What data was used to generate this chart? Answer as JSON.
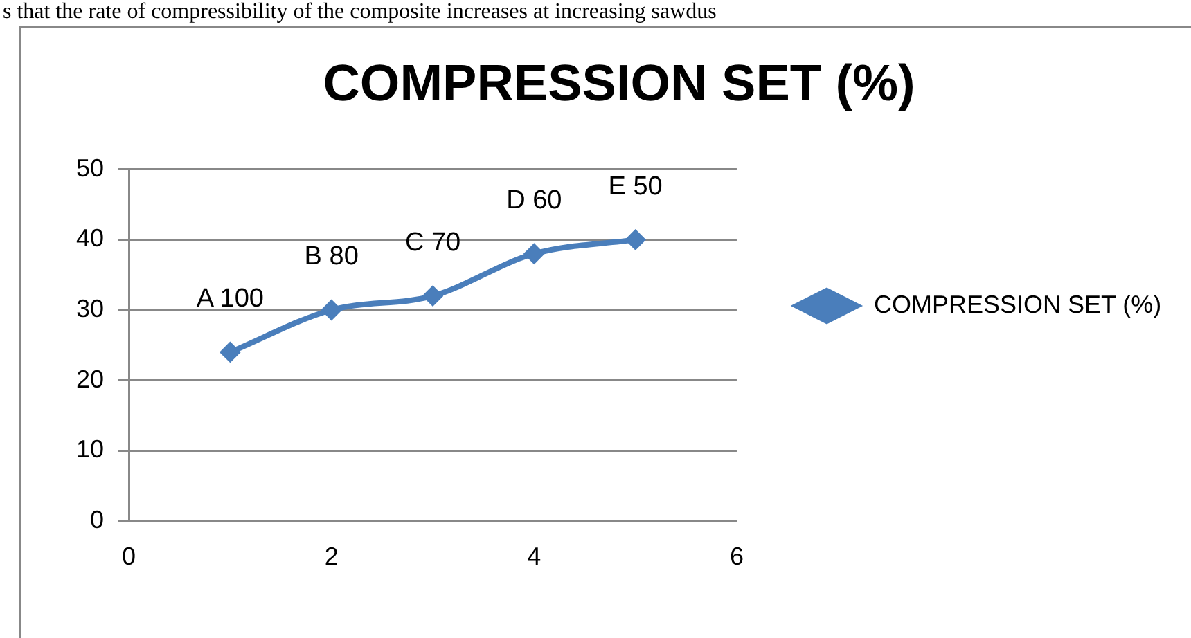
{
  "chart_data": {
    "type": "line",
    "title": "COMPRESSION SET (%)",
    "x": [
      1,
      2,
      3,
      4,
      5
    ],
    "series": [
      {
        "name": "COMPRESSION SET (%)",
        "color": "#4a7ebb",
        "values": [
          24,
          30,
          32,
          38,
          40
        ]
      }
    ],
    "xlim": [
      0,
      6
    ],
    "xticks": [
      0,
      2,
      4,
      6
    ],
    "ylim": [
      0,
      50
    ],
    "yticks": [
      0,
      10,
      20,
      30,
      40,
      50
    ],
    "grid": "y",
    "legend": "right",
    "marker": "diamond",
    "line_style": "solid",
    "annotations": [
      "s that the rate of compressibility of the composite increases at increasing sawdus",
      {
        "text": "A 100",
        "x": 1,
        "y": 24
      },
      {
        "text": "B 80",
        "x": 2,
        "y": 30
      },
      {
        "text": "C 70",
        "x": 3,
        "y": 32
      },
      {
        "text": "D 60",
        "x": 4,
        "y": 38
      },
      {
        "text": "E 50",
        "x": 5,
        "y": 40
      }
    ]
  }
}
